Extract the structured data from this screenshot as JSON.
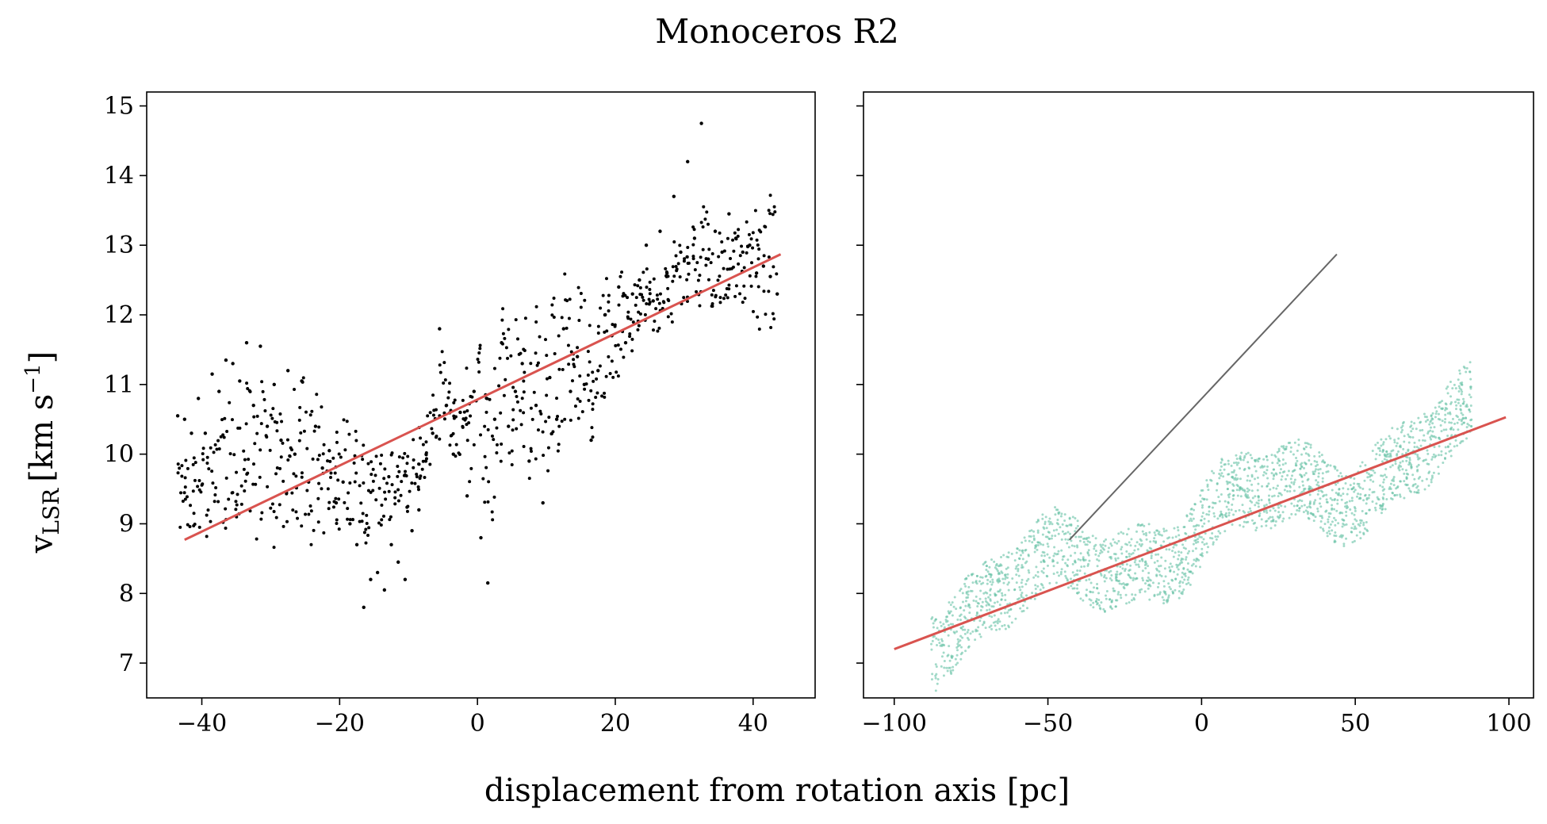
{
  "figure": {
    "title": "Monoceros R2",
    "xlabel": "displacement from rotation axis [pc]",
    "ylabel_main": "v",
    "ylabel_sub": "LSR",
    "ylabel_units": "[km s",
    "ylabel_sup": "−1",
    "ylabel_close": "]"
  },
  "chart_data": [
    {
      "type": "scatter",
      "panel": "left",
      "xlim": [
        -48,
        49
      ],
      "ylim": [
        6.5,
        15.2
      ],
      "xticks": [
        -40,
        -20,
        0,
        20,
        40
      ],
      "xtick_labels": [
        "−40",
        "−20",
        "0",
        "20",
        "40"
      ],
      "yticks": [
        7,
        8,
        9,
        10,
        11,
        12,
        13,
        14,
        15
      ],
      "ytick_labels": [
        "7",
        "8",
        "9",
        "10",
        "11",
        "12",
        "13",
        "14",
        "15"
      ],
      "grid": false,
      "colors": {
        "points": "#000000",
        "fit": "#d9534f"
      },
      "points": [
        [
          -43.5,
          10.55
        ],
        [
          -42.5,
          10.5
        ],
        [
          -41.5,
          10.3
        ],
        [
          -40.5,
          10.8
        ],
        [
          -39.5,
          10.3
        ],
        [
          -38.5,
          11.15
        ],
        [
          -37.5,
          10.9
        ],
        [
          -36.5,
          11.35
        ],
        [
          -35.5,
          11.3
        ],
        [
          -34.5,
          11.05
        ],
        [
          -33.5,
          11.6
        ],
        [
          -32.5,
          10.7
        ],
        [
          -31.5,
          11.55
        ],
        [
          -30.5,
          10.4
        ],
        [
          -29.5,
          11.0
        ],
        [
          -28.5,
          10.2
        ],
        [
          -27.5,
          11.2
        ],
        [
          -26.5,
          10.0
        ],
        [
          -25.5,
          11.05
        ],
        [
          -24.5,
          9.6
        ],
        [
          -23.5,
          10.4
        ],
        [
          -22.5,
          9.8
        ],
        [
          -21.5,
          10.05
        ],
        [
          -20.5,
          9.3
        ],
        [
          -19.5,
          9.6
        ],
        [
          -18.5,
          9.0
        ],
        [
          -17.5,
          8.7
        ],
        [
          -16.5,
          7.8
        ],
        [
          -15.5,
          8.2
        ],
        [
          -14.5,
          8.3
        ],
        [
          -13.5,
          8.05
        ],
        [
          -12.5,
          8.7
        ],
        [
          -11.5,
          8.45
        ],
        [
          -10.5,
          8.2
        ],
        [
          -9.5,
          8.9
        ],
        [
          -8.5,
          9.2
        ],
        [
          -7.5,
          9.9
        ],
        [
          -6.5,
          10.3
        ],
        [
          -5.5,
          11.8
        ],
        [
          -4.5,
          10.7
        ],
        [
          -3.5,
          10.0
        ],
        [
          -2.5,
          10.6
        ],
        [
          -1.5,
          9.4
        ],
        [
          -0.5,
          10.9
        ],
        [
          0.5,
          8.8
        ],
        [
          1.5,
          8.15
        ],
        [
          2.5,
          10.5
        ],
        [
          3.5,
          11.6
        ],
        [
          4.5,
          10.4
        ],
        [
          5.5,
          10.9
        ],
        [
          6.5,
          11.3
        ],
        [
          7.5,
          9.9
        ],
        [
          8.5,
          10.7
        ],
        [
          9.5,
          9.3
        ],
        [
          10.5,
          11.1
        ],
        [
          11.5,
          10.5
        ],
        [
          12.5,
          11.8
        ],
        [
          13.5,
          10.9
        ],
        [
          14.5,
          11.4
        ],
        [
          15.5,
          11.0
        ],
        [
          16.5,
          10.2
        ],
        [
          17.5,
          11.2
        ],
        [
          18.5,
          12.0
        ],
        [
          19.5,
          11.7
        ],
        [
          20.5,
          12.4
        ],
        [
          21.5,
          11.6
        ],
        [
          22.5,
          12.3
        ],
        [
          23.5,
          12.5
        ],
        [
          24.5,
          13.0
        ],
        [
          25.5,
          12.2
        ],
        [
          26.5,
          13.2
        ],
        [
          27.5,
          12.6
        ],
        [
          28.5,
          13.7
        ],
        [
          29.5,
          12.9
        ],
        [
          30.5,
          14.2
        ],
        [
          31.5,
          13.1
        ],
        [
          32.5,
          14.75
        ],
        [
          33.5,
          12.8
        ],
        [
          34.5,
          13.2
        ],
        [
          35.5,
          12.9
        ],
        [
          36.5,
          13.45
        ],
        [
          37.5,
          13.1
        ],
        [
          38.5,
          12.9
        ],
        [
          39.5,
          13.0
        ],
        [
          40.5,
          12.6
        ],
        [
          41.5,
          12.7
        ],
        [
          42.5,
          12.55
        ],
        [
          43.5,
          12.3
        ]
      ],
      "fit_line": [
        [
          -42.5,
          8.77
        ],
        [
          44.0,
          12.87
        ]
      ]
    },
    {
      "type": "scatter",
      "panel": "right",
      "xlim": [
        -110,
        108
      ],
      "ylim": [
        6.5,
        15.2
      ],
      "xticks": [
        -100,
        -50,
        0,
        50,
        100
      ],
      "xtick_labels": [
        "−100",
        "−50",
        "0",
        "50",
        "100"
      ],
      "yticks": [
        7,
        8,
        9,
        10,
        11,
        12,
        13,
        14,
        15
      ],
      "grid": false,
      "colors": {
        "points": "#66c2a5",
        "fit": "#d9534f",
        "gray_line": "#666666"
      },
      "band": {
        "x_range": [
          -88,
          88
        ],
        "center_trend_start": [
          -88,
          7.6
        ],
        "center_trend_end": [
          88,
          10.3
        ],
        "half_width": 0.55,
        "wave_amplitude": 0.35
      },
      "fit_line": [
        [
          -100,
          7.2
        ],
        [
          99,
          10.53
        ]
      ],
      "gray_line": [
        [
          -43,
          8.77
        ],
        [
          44.0,
          12.87
        ]
      ]
    }
  ]
}
